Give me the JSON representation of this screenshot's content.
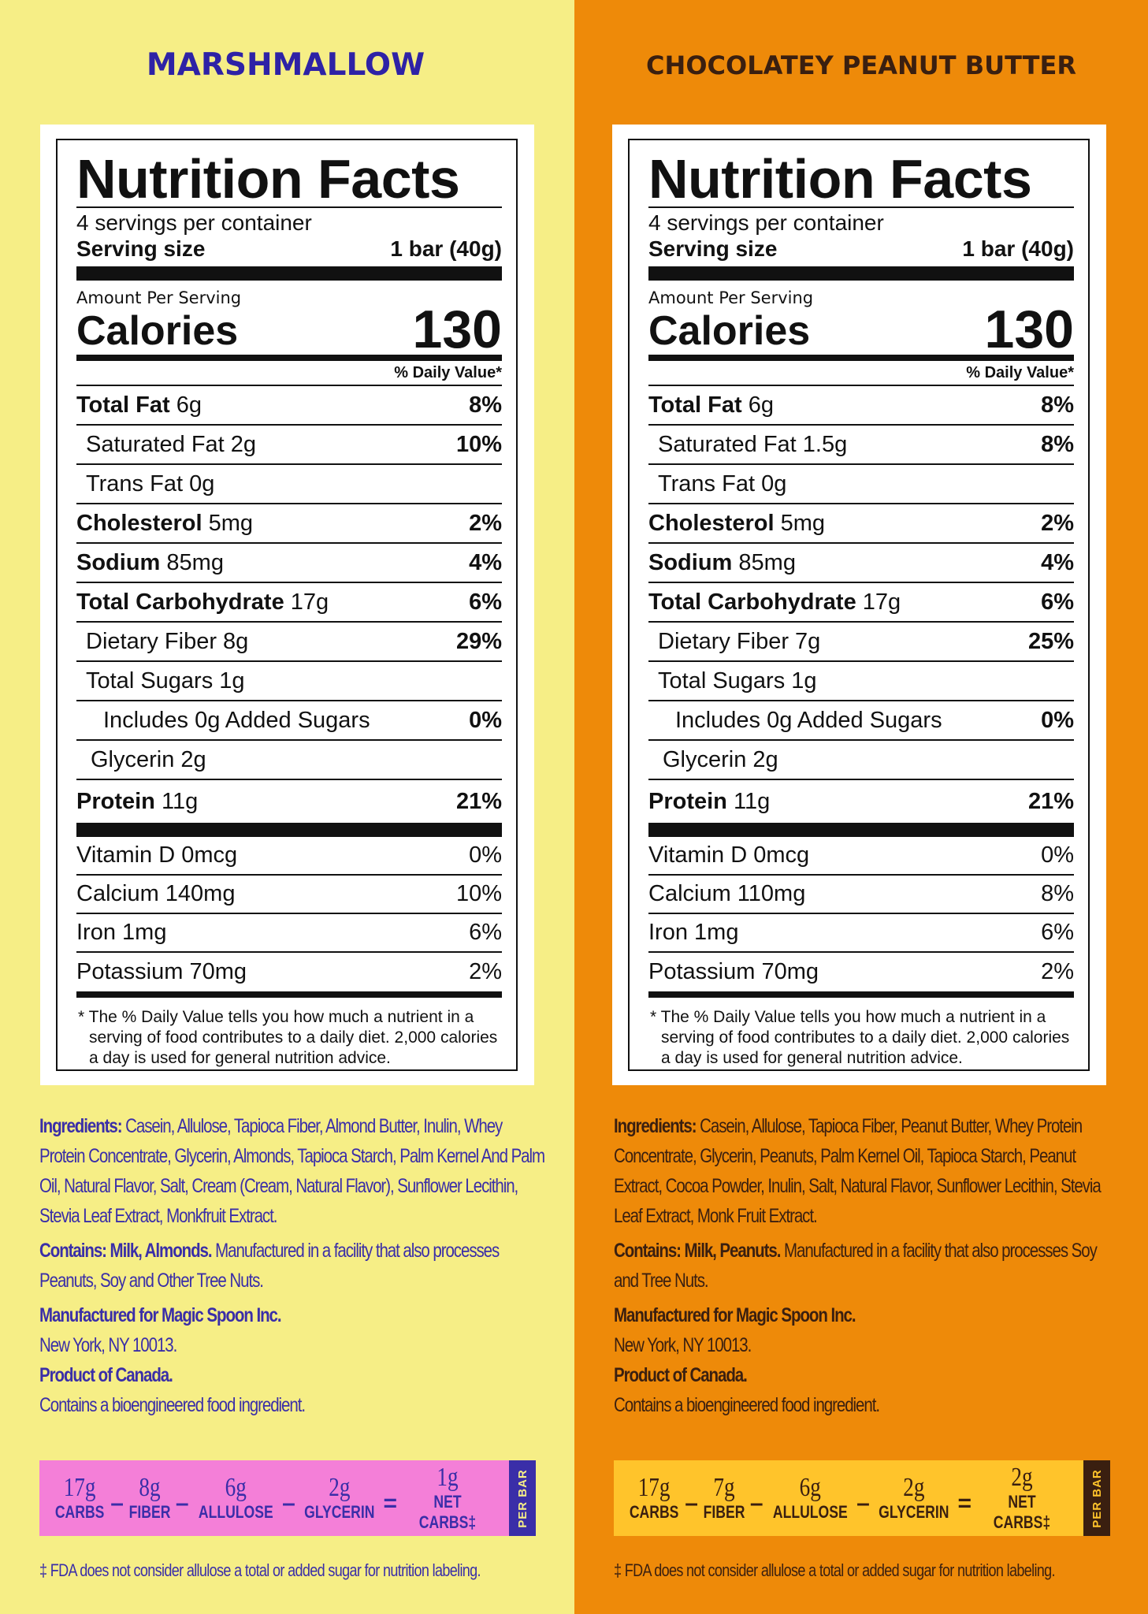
{
  "panels": [
    {
      "flavor": "MARSHMALLOW",
      "nf_title": "Nutrition Facts",
      "servings": "4 servings per container",
      "serving_size_label": "Serving size",
      "serving_size_value": "1 bar (40g)",
      "amount_per_serving": "Amount Per Serving",
      "calories_label": "Calories",
      "calories_value": "130",
      "dv_header": "% Daily Value*",
      "nutrients": [
        {
          "name": "Total Fat",
          "amount": "6g",
          "pct": "8%"
        },
        {
          "name": "Saturated Fat 2g",
          "pct": "10%"
        },
        {
          "name": "Trans Fat 0g",
          "pct": ""
        },
        {
          "name": "Cholesterol",
          "amount": "5mg",
          "pct": "2%"
        },
        {
          "name": "Sodium",
          "amount": "85mg",
          "pct": "4%"
        },
        {
          "name": "Total Carbohydrate",
          "amount": "17g",
          "pct": "6%"
        },
        {
          "name": "Dietary Fiber 8g",
          "pct": "29%"
        },
        {
          "name": "Total Sugars 1g",
          "pct": ""
        },
        {
          "name": "Includes 0g Added Sugars",
          "pct": "0%"
        },
        {
          "name": "Glycerin 2g",
          "pct": ""
        },
        {
          "name": "Protein",
          "amount": "11g",
          "pct": "21%"
        }
      ],
      "vitamins": [
        {
          "name": "Vitamin D 0mcg",
          "pct": "0%"
        },
        {
          "name": "Calcium 140mg",
          "pct": "10%"
        },
        {
          "name": "Iron 1mg",
          "pct": "6%"
        },
        {
          "name": "Potassium 70mg",
          "pct": "2%"
        }
      ],
      "footnote": "* The % Daily Value tells you how much a nutrient in a serving of food contributes to a daily diet. 2,000 calories a day is used for general nutrition advice.",
      "ingredients_label": "Ingredients:",
      "ingredients": "Casein, Allulose, Tapioca Fiber, Almond Butter, Inulin, Whey Protein Concentrate, Glycerin, Almonds, Tapioca Starch, Palm Kernel And Palm Oil, Natural Flavor, Salt, Cream (Cream, Natural Flavor), Sunflower Lecithin, Stevia Leaf Extract, Monkfruit Extract.",
      "contains_label": "Contains: Milk, Almonds.",
      "contains_text": "Manufactured in a facility that also processes Peanuts, Soy and Other Tree Nuts.",
      "mfr_label": "Manufactured for Magic Spoon Inc.",
      "mfr_address": "New York, NY 10013.",
      "product_of": "Product of Canada.",
      "bioengineered": "Contains a bioengineered food ingredient.",
      "summary": [
        {
          "value": "17g",
          "label": "CARBS"
        },
        {
          "value": "8g",
          "label": "FIBER"
        },
        {
          "value": "6g",
          "label": "ALLULOSE"
        },
        {
          "value": "2g",
          "label": "GLYCERIN"
        },
        {
          "value": "1g",
          "label": "NET CARBS‡"
        }
      ],
      "per_bar": "PER BAR",
      "fda_note": "‡ FDA does not consider allulose a total or added sugar for nutrition labeling."
    },
    {
      "flavor": "CHOCOLATEY PEANUT BUTTER",
      "nf_title": "Nutrition Facts",
      "servings": "4 servings per container",
      "serving_size_label": "Serving size",
      "serving_size_value": "1 bar (40g)",
      "amount_per_serving": "Amount Per Serving",
      "calories_label": "Calories",
      "calories_value": "130",
      "dv_header": "% Daily Value*",
      "nutrients": [
        {
          "name": "Total Fat",
          "amount": "6g",
          "pct": "8%"
        },
        {
          "name": "Saturated Fat 1.5g",
          "pct": "8%"
        },
        {
          "name": "Trans Fat 0g",
          "pct": ""
        },
        {
          "name": "Cholesterol",
          "amount": "5mg",
          "pct": "2%"
        },
        {
          "name": "Sodium",
          "amount": "85mg",
          "pct": "4%"
        },
        {
          "name": "Total Carbohydrate",
          "amount": "17g",
          "pct": "6%"
        },
        {
          "name": "Dietary Fiber 7g",
          "pct": "25%"
        },
        {
          "name": "Total Sugars 1g",
          "pct": ""
        },
        {
          "name": "Includes 0g Added Sugars",
          "pct": "0%"
        },
        {
          "name": "Glycerin 2g",
          "pct": ""
        },
        {
          "name": "Protein",
          "amount": "11g",
          "pct": "21%"
        }
      ],
      "vitamins": [
        {
          "name": "Vitamin D 0mcg",
          "pct": "0%"
        },
        {
          "name": "Calcium 110mg",
          "pct": "8%"
        },
        {
          "name": "Iron 1mg",
          "pct": "6%"
        },
        {
          "name": "Potassium 70mg",
          "pct": "2%"
        }
      ],
      "footnote": "* The % Daily Value tells you how much a nutrient in a serving of food contributes to a daily diet. 2,000 calories a day is used for general nutrition advice.",
      "ingredients_label": "Ingredients:",
      "ingredients": "Casein, Allulose, Tapioca Fiber, Peanut Butter, Whey Protein Concentrate, Glycerin, Peanuts, Palm Kernel Oil, Tapioca Starch, Peanut Extract, Cocoa Powder, Inulin, Salt, Natural Flavor, Sunflower Lecithin, Stevia Leaf Extract, Monk Fruit Extract.",
      "contains_label": "Contains: Milk, Peanuts.",
      "contains_text": "Manufactured in a facility that also processes Soy and Tree Nuts.",
      "mfr_label": "Manufactured for Magic Spoon Inc.",
      "mfr_address": "New York, NY 10013.",
      "product_of": "Product of Canada.",
      "bioengineered": "Contains a bioengineered food ingredient.",
      "summary": [
        {
          "value": "17g",
          "label": "CARBS"
        },
        {
          "value": "7g",
          "label": "FIBER"
        },
        {
          "value": "6g",
          "label": "ALLULOSE"
        },
        {
          "value": "2g",
          "label": "GLYCERIN"
        },
        {
          "value": "2g",
          "label": "NET CARBS‡"
        }
      ],
      "per_bar": "PER BAR",
      "fda_note": "‡ FDA does not consider allulose a total or added sugar for nutrition labeling."
    }
  ],
  "operators": [
    "–",
    "–",
    "–",
    "="
  ],
  "colors": {
    "marshmallow_bg": "#f6ee86",
    "marshmallow_text": "#3a2ea8",
    "marshmallow_summary": "#f47fd8",
    "pb_bg": "#ee8a09",
    "pb_text": "#3a1f10",
    "pb_summary": "#ffc42b"
  }
}
